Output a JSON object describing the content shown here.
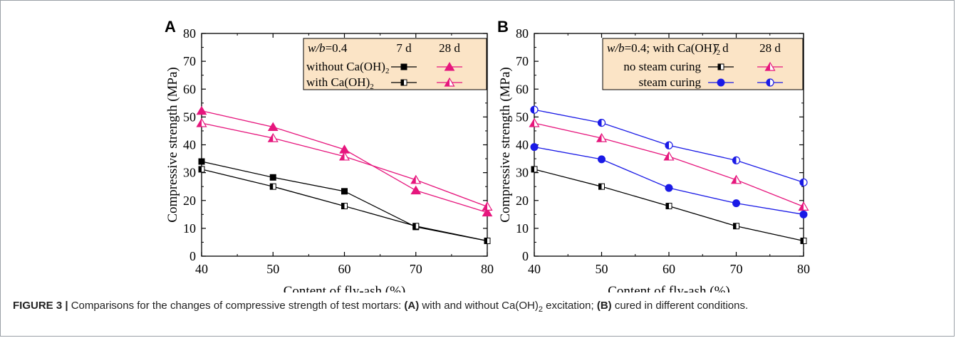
{
  "caption": {
    "figure_label": "FIGURE 3 |",
    "t1": " Comparisons for the changes of compressive strength of test mortars: ",
    "a_label": "(A)",
    "t2": " with and without Ca(OH)",
    "t2_sub": "2",
    "t3": " excitation; ",
    "b_label": "(B)",
    "t4": " cured in different conditions."
  },
  "chart_data": [
    {
      "type": "line",
      "panel": "A",
      "xlabel": "Content of fly-ash (%)",
      "ylabel": "Compressive strength (MPa)",
      "x": [
        40,
        50,
        60,
        70,
        80
      ],
      "xlim": [
        40,
        80
      ],
      "ylim": [
        0,
        80
      ],
      "x_ticks": [
        "40",
        "50",
        "60",
        "70",
        "80"
      ],
      "y_ticks": [
        "0",
        "10",
        "20",
        "30",
        "40",
        "50",
        "60",
        "70",
        "80"
      ],
      "legend": {
        "placement": "top-right",
        "header_pre": "w/b",
        "header_post": "=0.4",
        "col1": "7 d",
        "col2": "28 d",
        "rows": [
          {
            "label": "without Ca(OH)",
            "sub": "2",
            "m7": "square-filled",
            "m28": "triangle-filled"
          },
          {
            "label": "with Ca(OH)",
            "sub": "2",
            "m7": "square-half",
            "m28": "triangle-half"
          }
        ]
      },
      "series": [
        {
          "color": "#000000",
          "marker": "square-filled",
          "values": [
            34,
            28.3,
            23.3,
            10.5,
            5.5
          ]
        },
        {
          "color": "#e6167d",
          "marker": "triangle-filled",
          "values": [
            52.2,
            46.4,
            38.3,
            23.6,
            15.7
          ]
        },
        {
          "color": "#000000",
          "marker": "square-half",
          "values": [
            31.2,
            25,
            18,
            10.8,
            5.5
          ]
        },
        {
          "color": "#e6167d",
          "marker": "triangle-half",
          "values": [
            47.8,
            42.4,
            35.8,
            27.4,
            17.8
          ]
        }
      ]
    },
    {
      "type": "line",
      "panel": "B",
      "xlabel": "Content of fly-ash (%)",
      "ylabel": "Compressive strength (MPa)",
      "x": [
        40,
        50,
        60,
        70,
        80
      ],
      "xlim": [
        40,
        80
      ],
      "ylim": [
        0,
        80
      ],
      "x_ticks": [
        "40",
        "50",
        "60",
        "70",
        "80"
      ],
      "y_ticks": [
        "0",
        "10",
        "20",
        "30",
        "40",
        "50",
        "60",
        "70",
        "80"
      ],
      "legend": {
        "placement": "top-right",
        "header_pre": "w/b",
        "header_post": "=0.4; with Ca(OH)",
        "header_sub": "2",
        "col1": "7 d",
        "col2": "28 d",
        "rows": [
          {
            "label": "no steam curing",
            "m7": "square-half",
            "m28": "triangle-half",
            "c7": "#000000",
            "c28": "#e6167d"
          },
          {
            "label": "steam curing",
            "m7": "circle-filled",
            "m28": "circle-half",
            "c7": "#1a1ae6",
            "c28": "#1a1ae6"
          }
        ]
      },
      "series": [
        {
          "color": "#000000",
          "marker": "square-half",
          "values": [
            31.2,
            25,
            18,
            10.8,
            5.5
          ]
        },
        {
          "color": "#e6167d",
          "marker": "triangle-half",
          "values": [
            47.8,
            42.4,
            35.8,
            27.4,
            17.8
          ]
        },
        {
          "color": "#1a1ae6",
          "marker": "circle-filled",
          "values": [
            39.2,
            34.8,
            24.5,
            19,
            15
          ]
        },
        {
          "color": "#1a1ae6",
          "marker": "circle-half",
          "values": [
            52.6,
            47.9,
            39.8,
            34.4,
            26.5
          ]
        }
      ]
    }
  ]
}
